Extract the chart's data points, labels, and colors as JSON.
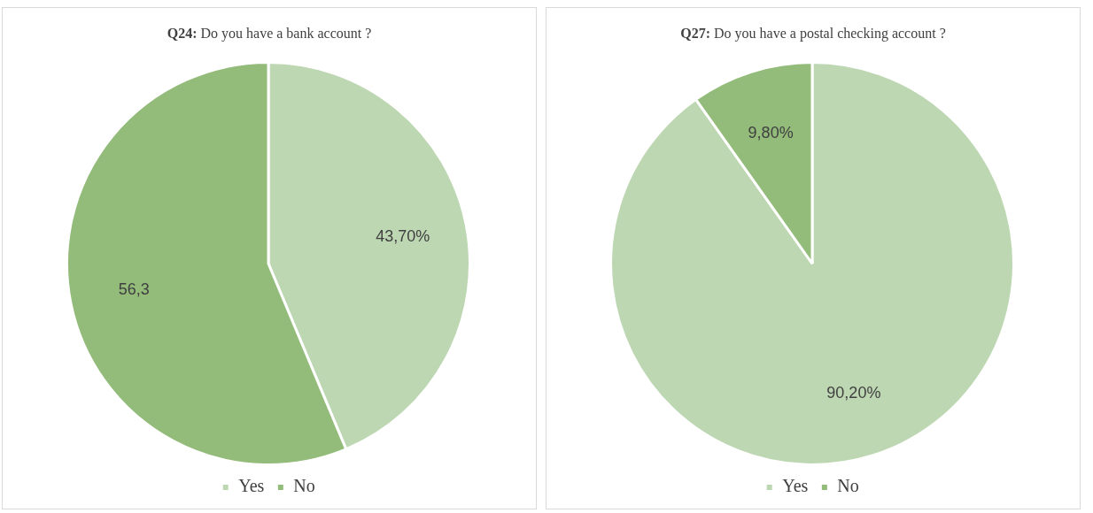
{
  "chart_data": [
    {
      "type": "pie",
      "title": "Q24: Do you have a bank account ?",
      "categories": [
        "Yes",
        "No"
      ],
      "values": [
        43.7,
        56.3
      ],
      "colors": [
        "#bed7b3",
        "#93bb7a"
      ],
      "value_labels": [
        "43,70%",
        "56,3"
      ],
      "legend": "bottom"
    },
    {
      "type": "pie",
      "title": "Q27: Do you have a postal checking account ?",
      "categories": [
        "Yes",
        "No"
      ],
      "values": [
        90.2,
        9.8
      ],
      "colors": [
        "#bed7b3",
        "#93bb7a"
      ],
      "value_labels": [
        "90,20%",
        "9,80%"
      ],
      "legend": "bottom"
    }
  ]
}
